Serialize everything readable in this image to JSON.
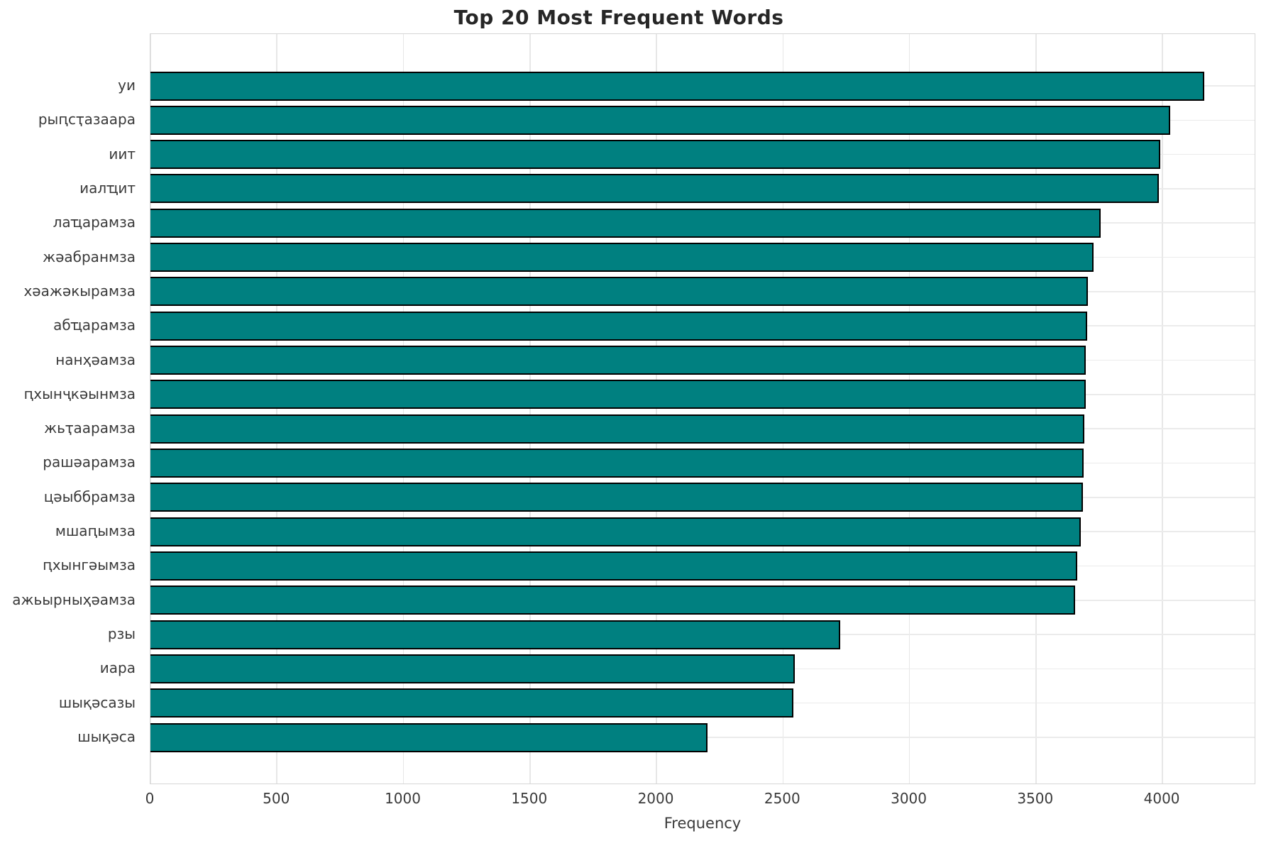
{
  "title": "Top 20 Most Frequent Words",
  "colors": {
    "bar_fill": "#008080",
    "bar_edge": "#000000",
    "grid": "#e9e9e9",
    "spine": "#d6d6d6",
    "text": "#3a3a3a",
    "title_text": "#262626",
    "background": "#ffffff"
  },
  "chart_data": {
    "type": "bar",
    "orientation": "horizontal",
    "title": "Top 20 Most Frequent Words",
    "xlabel": "Frequency",
    "ylabel": "",
    "grid": true,
    "legend_position": "none",
    "categories": [
      "уи",
      "рыԥсҭазаара",
      "иит",
      "иалҵит",
      "лаҵарамза",
      "жәабранмза",
      "хәажәкырамза",
      "абҵарамза",
      "нанҳәамза",
      "ԥхынҷкәынмза",
      "жьҭаарамза",
      "рашәарамза",
      "цәыббрамза",
      "мшаԥымза",
      "ԥхынгәымза",
      "ажьырныҳәамза",
      "рзы",
      "иара",
      "шықәсазы",
      "шықәса"
    ],
    "values": [
      4166,
      4031,
      3991,
      3986,
      3755,
      3727,
      3704,
      3703,
      3698,
      3697,
      3690,
      3688,
      3685,
      3678,
      3663,
      3654,
      2725,
      2546,
      2541,
      2203
    ],
    "xlim": [
      0,
      4370
    ],
    "xticks": [
      0,
      500,
      1000,
      1500,
      2000,
      2500,
      3000,
      3500,
      4000
    ]
  }
}
